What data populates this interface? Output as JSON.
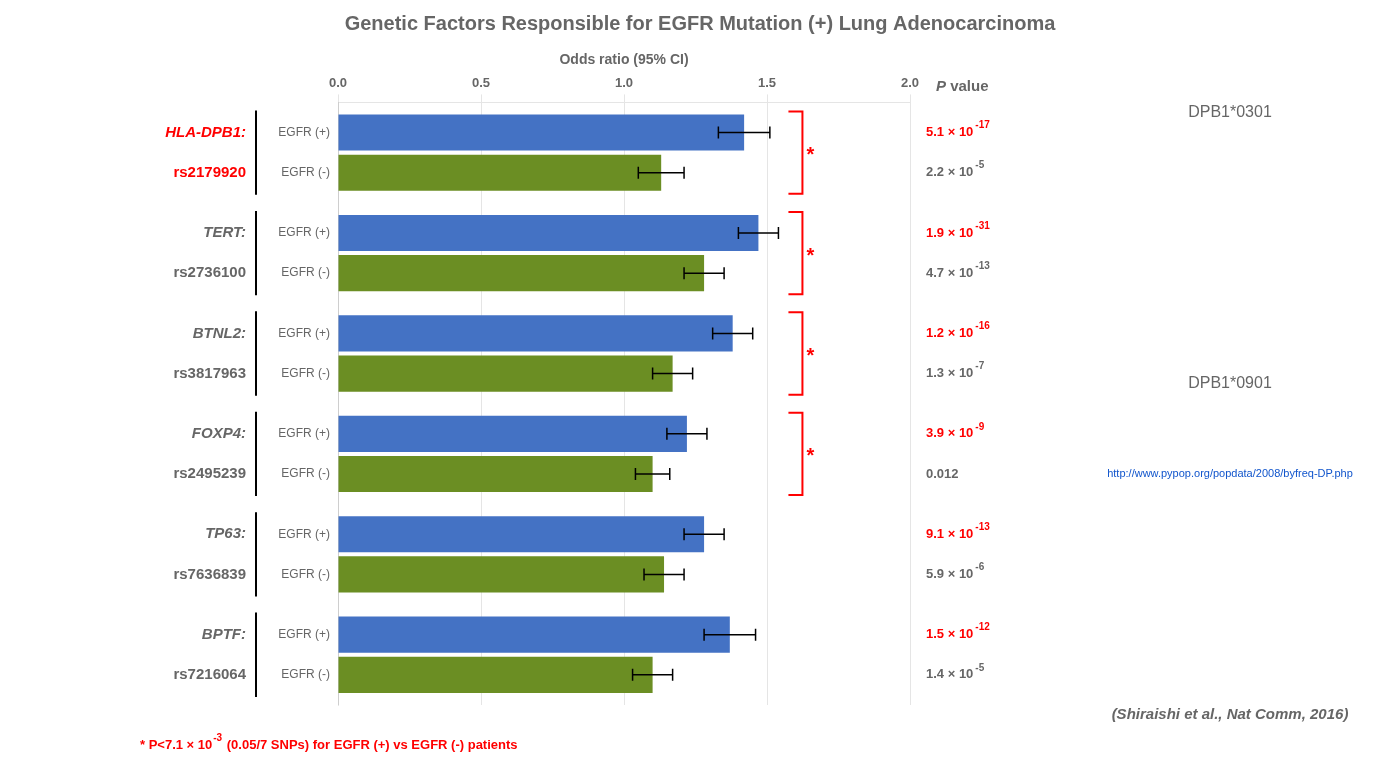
{
  "chart_data": {
    "type": "bar",
    "orientation": "horizontal",
    "title": "Genetic Factors Responsible for EGFR Mutation (+) Lung Adenocarcinoma",
    "x_label": "Odds ratio (95% CI)",
    "xlim": [
      0,
      2
    ],
    "xticks": [
      {
        "value": 0,
        "label": "0.0"
      },
      0.5,
      {
        "value": 1,
        "label": "1.0"
      },
      1.5,
      {
        "value": 2,
        "label": "2.0"
      }
    ],
    "grid": true,
    "tick_labels": "x",
    "categories": [
      "HLA-DPB1:",
      "TERT:",
      "BTNL2:",
      "FOXP4:",
      "TP63:",
      "BPTF:"
    ],
    "snps": [
      "rs2179920",
      "rs2736100",
      "rs3817963",
      "rs2495239",
      "rs7636839",
      "rs7216064"
    ],
    "highlight_color": "#FF0000",
    "highlight": [
      true,
      false,
      false,
      false,
      false,
      false
    ],
    "series": [
      {
        "name": "EGFR (+)",
        "color": "#4472C4",
        "values": [
          1.42,
          1.47,
          1.38,
          1.22,
          1.28,
          1.37
        ],
        "errors": [
          0.09,
          0.07,
          0.07,
          0.07,
          0.07,
          0.09
        ],
        "p_values": [
          "5.1 × 10",
          "1.9 × 10",
          "1.2 × 10",
          "3.9 × 10",
          "9.1 × 10",
          "1.5 × 10"
        ],
        "p_exponents": [
          "-17",
          "-31",
          "-16",
          "-9",
          "-13",
          "-12"
        ],
        "p_highlight": true
      },
      {
        "name": "EGFR (-)",
        "color": "#6B8E23",
        "values": [
          1.13,
          1.28,
          1.17,
          1.1,
          1.14,
          1.1
        ],
        "errors": [
          0.08,
          0.07,
          0.07,
          0.06,
          0.07,
          0.07
        ],
        "p_values": [
          "2.2 × 10",
          "4.7 × 10",
          "1.3 × 10",
          "0.012",
          "5.9 × 10",
          "1.4 × 10"
        ],
        "p_exponents": [
          "-5",
          "-13",
          "-7",
          "",
          "-6",
          "-5"
        ],
        "p_highlight": false
      }
    ],
    "significant": [
      true,
      true,
      true,
      true,
      false,
      false
    ],
    "significance_mark": "*",
    "p_header": "P value",
    "footnote_prefix": "* P<7.1 × 10",
    "footnote_exponent": "-3",
    "footnote_suffix": " (0.05/7 SNPs) for EGFR (+) vs EGFR (-) patients",
    "map_titles": [
      "DPB1*0301",
      "DPB1*0901"
    ],
    "map_url": "http://www.pypop.org/popdata/2008/byfreq-DP.php",
    "citation": "(Shiraishi et al., Nat Comm, 2016)"
  }
}
